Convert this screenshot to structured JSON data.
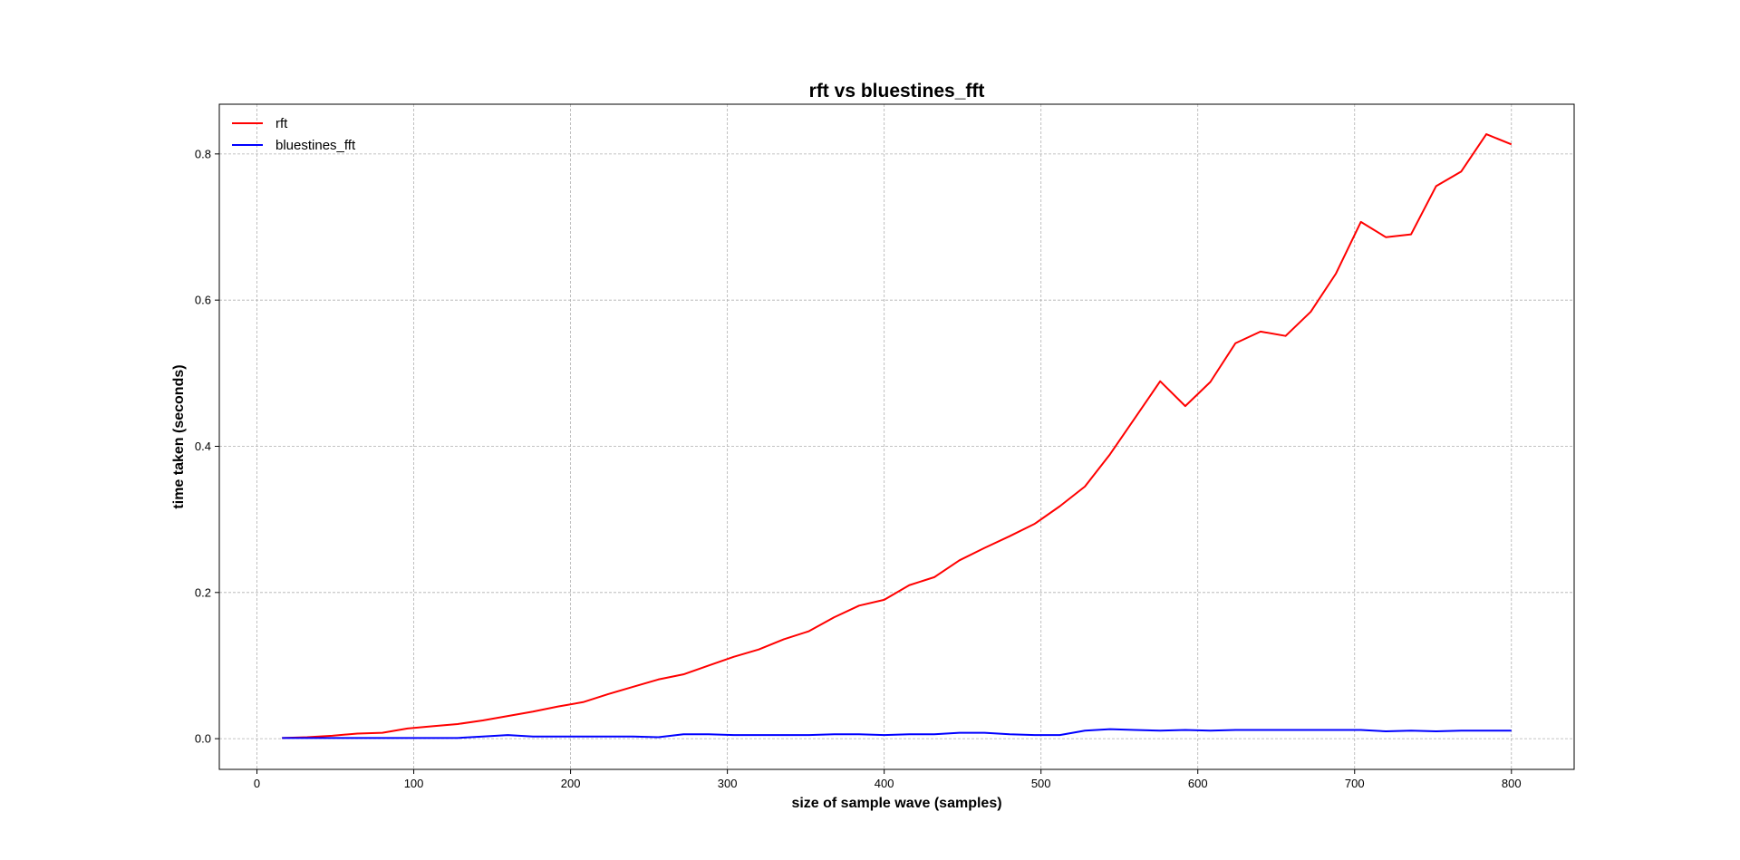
{
  "chart_data": {
    "type": "line",
    "title": "rft vs bluestines_fft",
    "xlabel": "size of sample wave (samples)",
    "ylabel": "time taken (seconds)",
    "xlim": [
      -24,
      840
    ],
    "ylim": [
      -0.042,
      0.868
    ],
    "xticks": [
      0,
      100,
      200,
      300,
      400,
      500,
      600,
      700,
      800
    ],
    "yticks": [
      0.0,
      0.2,
      0.4,
      0.6,
      0.8
    ],
    "ytick_labels": [
      "0.0",
      "0.2",
      "0.4",
      "0.6",
      "0.8"
    ],
    "grid": true,
    "legend_position": "top-left",
    "x": [
      16,
      32,
      48,
      64,
      80,
      96,
      112,
      128,
      144,
      160,
      176,
      192,
      208,
      224,
      240,
      256,
      272,
      288,
      304,
      320,
      336,
      352,
      368,
      384,
      400,
      416,
      432,
      448,
      464,
      480,
      496,
      512,
      528,
      544,
      560,
      576,
      592,
      608,
      624,
      640,
      656,
      672,
      688,
      704,
      720,
      736,
      752,
      768,
      784,
      800
    ],
    "series": [
      {
        "name": "rft",
        "color": "#ff0000",
        "values": [
          0.001,
          0.002,
          0.004,
          0.007,
          0.008,
          0.014,
          0.017,
          0.02,
          0.025,
          0.031,
          0.037,
          0.044,
          0.05,
          0.061,
          0.071,
          0.081,
          0.088,
          0.1,
          0.112,
          0.122,
          0.136,
          0.147,
          0.166,
          0.182,
          0.19,
          0.21,
          0.221,
          0.244,
          0.261,
          0.277,
          0.294,
          0.318,
          0.345,
          0.389,
          0.439,
          0.489,
          0.455,
          0.488,
          0.541,
          0.557,
          0.551,
          0.584,
          0.636,
          0.707,
          0.686,
          0.69,
          0.756,
          0.776,
          0.827,
          0.813
        ]
      },
      {
        "name": "bluestines_fft",
        "color": "#0000ff",
        "values": [
          0.001,
          0.001,
          0.001,
          0.001,
          0.001,
          0.001,
          0.001,
          0.001,
          0.003,
          0.005,
          0.003,
          0.003,
          0.003,
          0.003,
          0.003,
          0.002,
          0.006,
          0.006,
          0.005,
          0.005,
          0.005,
          0.005,
          0.006,
          0.006,
          0.005,
          0.006,
          0.006,
          0.008,
          0.008,
          0.006,
          0.005,
          0.005,
          0.011,
          0.013,
          0.012,
          0.011,
          0.012,
          0.011,
          0.012,
          0.012,
          0.012,
          0.012,
          0.012,
          0.012,
          0.01,
          0.011,
          0.01,
          0.011,
          0.011,
          0.011
        ]
      }
    ]
  }
}
